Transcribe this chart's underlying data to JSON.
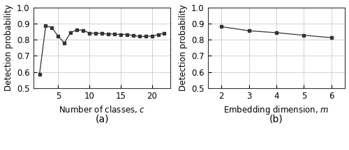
{
  "plot_a": {
    "x": [
      2,
      3,
      4,
      5,
      6,
      7,
      8,
      9,
      10,
      11,
      12,
      13,
      14,
      15,
      16,
      17,
      18,
      19,
      20,
      21,
      22
    ],
    "y": [
      0.585,
      0.885,
      0.875,
      0.82,
      0.78,
      0.845,
      0.86,
      0.858,
      0.84,
      0.84,
      0.838,
      0.835,
      0.835,
      0.832,
      0.832,
      0.825,
      0.82,
      0.82,
      0.823,
      0.83,
      0.84
    ],
    "xlabel": "Number of classes, $c$",
    "ylabel": "Detection probability",
    "label": "(a)",
    "xlim": [
      1,
      23
    ],
    "ylim": [
      0.5,
      1.0
    ],
    "yticks": [
      0.5,
      0.6,
      0.7,
      0.8,
      0.9,
      1.0
    ],
    "xticks": [
      5,
      10,
      15,
      20
    ]
  },
  "plot_b": {
    "x": [
      2,
      3,
      4,
      5,
      6
    ],
    "y": [
      0.88,
      0.855,
      0.843,
      0.827,
      0.812
    ],
    "xlabel": "Embedding dimension, $m$",
    "ylabel": "Detection probability",
    "label": "(b)",
    "xlim": [
      1.5,
      6.5
    ],
    "ylim": [
      0.5,
      1.0
    ],
    "yticks": [
      0.5,
      0.6,
      0.7,
      0.8,
      0.9,
      1.0
    ],
    "xticks": [
      2,
      3,
      4,
      5,
      6
    ]
  },
  "line_color": "#333333",
  "marker": "s",
  "markersize": 3.5,
  "linewidth": 0.9,
  "grid_color": "#c0c0c0",
  "label_fontsize": 8.5,
  "tick_fontsize": 8.5,
  "sublabel_fontsize": 10,
  "figsize": [
    5.0,
    2.16
  ],
  "dpi": 100
}
